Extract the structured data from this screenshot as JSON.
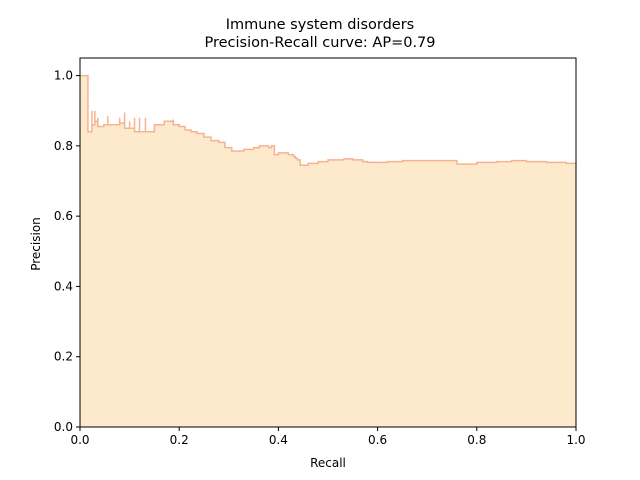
{
  "chart_data": {
    "type": "area",
    "title": "Immune system disorders",
    "subtitle": "Precision-Recall curve: AP=0.79",
    "xlabel": "Recall",
    "ylabel": "Precision",
    "xlim": [
      0.0,
      1.0
    ],
    "ylim": [
      0.0,
      1.05
    ],
    "xticks": [
      "0.0",
      "0.2",
      "0.4",
      "0.6",
      "0.8",
      "1.0"
    ],
    "yticks": [
      "0.0",
      "0.2",
      "0.4",
      "0.6",
      "0.8",
      "1.0"
    ],
    "grid": false,
    "legend": "none",
    "colors": {
      "fill": "#fde9cc",
      "line": "#f6b393"
    },
    "series": [
      {
        "recall": [
          0.0,
          0.016,
          0.016,
          0.024,
          0.024,
          0.03,
          0.03,
          0.036,
          0.036,
          0.048,
          0.048,
          0.056,
          0.056,
          0.068,
          0.068,
          0.08,
          0.08,
          0.09,
          0.09,
          0.1,
          0.1,
          0.11,
          0.11,
          0.12,
          0.12,
          0.132,
          0.132,
          0.15,
          0.17,
          0.188,
          0.188,
          0.2,
          0.2,
          0.212,
          0.212,
          0.224,
          0.224,
          0.236,
          0.236,
          0.25,
          0.264,
          0.28,
          0.292,
          0.3,
          0.306,
          0.306,
          0.33,
          0.35,
          0.362,
          0.372,
          0.38,
          0.386,
          0.392,
          0.392,
          0.4,
          0.42,
          0.43,
          0.434,
          0.438,
          0.444,
          0.444,
          0.46,
          0.48,
          0.5,
          0.52,
          0.532,
          0.55,
          0.57,
          0.58,
          0.6,
          0.62,
          0.65,
          0.7,
          0.74,
          0.76,
          0.76,
          0.8,
          0.84,
          0.87,
          0.9,
          0.94,
          0.98,
          1.0
        ],
        "precision": [
          1.0,
          1.0,
          0.84,
          0.9,
          0.86,
          0.9,
          0.87,
          0.88,
          0.855,
          0.86,
          0.86,
          0.885,
          0.86,
          0.86,
          0.86,
          0.88,
          0.865,
          0.895,
          0.85,
          0.87,
          0.85,
          0.88,
          0.84,
          0.88,
          0.84,
          0.88,
          0.84,
          0.86,
          0.87,
          0.875,
          0.86,
          0.86,
          0.855,
          0.855,
          0.845,
          0.845,
          0.84,
          0.84,
          0.835,
          0.825,
          0.815,
          0.81,
          0.795,
          0.795,
          0.79,
          0.785,
          0.79,
          0.795,
          0.8,
          0.8,
          0.795,
          0.8,
          0.795,
          0.775,
          0.78,
          0.775,
          0.77,
          0.765,
          0.76,
          0.755,
          0.745,
          0.75,
          0.755,
          0.76,
          0.76,
          0.763,
          0.76,
          0.755,
          0.753,
          0.753,
          0.755,
          0.758,
          0.758,
          0.758,
          0.755,
          0.748,
          0.753,
          0.755,
          0.758,
          0.755,
          0.753,
          0.75,
          0.748
        ]
      }
    ]
  }
}
